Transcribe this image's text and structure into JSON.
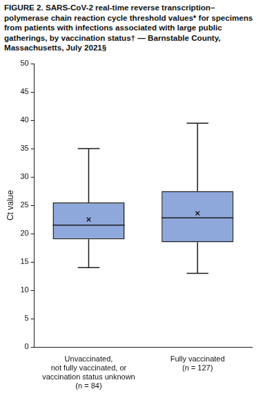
{
  "chart_data": {
    "type": "box",
    "title": "FIGURE 2. SARS-CoV-2 real-time reverse transcription–polymerase chain reaction cycle threshold values* for specimens from patients with infections associated with large public gatherings, by vaccination status† — Barnstable County, Massachusetts, July 2021§",
    "y_label": "Ct value",
    "categories": [
      "Unvaccinated,\nnot fully vaccinated, or\nvaccination status unknown\n(n = 84)",
      "Fully vaccinated\n(n = 127)"
    ],
    "stats": [
      {
        "min": 14,
        "q1": 19,
        "median": 21.5,
        "q3": 25.5,
        "max": 35,
        "mean": 22.5
      },
      {
        "min": 13,
        "q1": 18.5,
        "median": 22.8,
        "q3": 27.5,
        "max": 39.5,
        "mean": 23.6
      }
    ],
    "color": "#8fa8dc",
    "marker": "x",
    "ylim": [
      0,
      50
    ],
    "yticks": [
      0,
      5,
      10,
      15,
      20,
      25,
      30,
      35,
      40,
      45,
      50
    ],
    "grid": false
  }
}
